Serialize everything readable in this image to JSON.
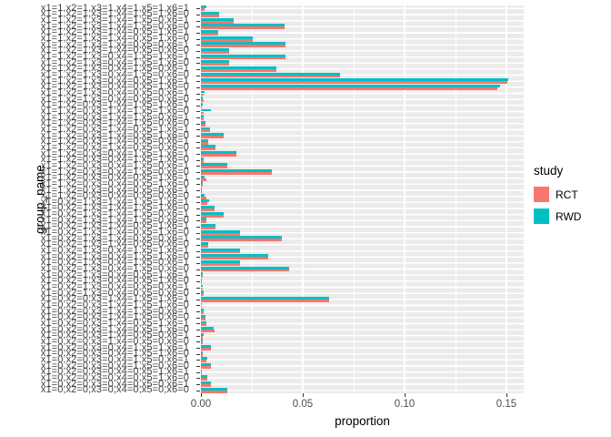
{
  "y_axis": {
    "title": "group_name",
    "labels": [
      "x1=1,x2=1,x3=1,x4=1,x5=1,x6=1",
      "x1=1,x2=1,x3=1,x4=1,x5=1,x6=0",
      "x1=1,x2=1,x3=1,x4=1,x5=0,x6=1",
      "x1=1,x2=1,x3=1,x4=1,x5=0,x6=0",
      "x1=1,x2=1,x3=1,x4=0,x5=1,x6=1",
      "x1=1,x2=1,x3=1,x4=0,x5=1,x6=0",
      "x1=1,x2=1,x3=1,x4=0,x5=0,x6=1",
      "x1=1,x2=1,x3=1,x4=0,x5=0,x6=0",
      "x1=1,x2=1,x3=0,x4=1,x5=1,x6=1",
      "x1=1,x2=1,x3=0,x4=1,x5=1,x6=0",
      "x1=1,x2=1,x3=0,x4=1,x5=0,x6=1",
      "x1=1,x2=1,x3=0,x4=1,x5=0,x6=0",
      "x1=1,x2=1,x3=0,x4=0,x5=1,x6=1",
      "x1=1,x2=1,x3=0,x4=0,x5=1,x6=0",
      "x1=1,x2=1,x3=0,x4=0,x5=0,x6=1",
      "x1=1,x2=1,x3=0,x4=0,x5=0,x6=0",
      "x1=1,x2=0,x3=1,x4=1,x5=1,x6=1",
      "x1=1,x2=0,x3=1,x4=1,x5=1,x6=0",
      "x1=1,x2=0,x3=1,x4=1,x5=0,x6=1",
      "x1=1,x2=0,x3=1,x4=1,x5=0,x6=0",
      "x1=1,x2=0,x3=1,x4=0,x5=1,x6=1",
      "x1=1,x2=0,x3=1,x4=0,x5=1,x6=0",
      "x1=1,x2=0,x3=1,x4=0,x5=0,x6=1",
      "x1=1,x2=0,x3=1,x4=0,x5=0,x6=0",
      "x1=1,x2=0,x3=0,x4=1,x5=1,x6=1",
      "x1=1,x2=0,x3=0,x4=1,x5=1,x6=0",
      "x1=1,x2=0,x3=0,x4=1,x5=0,x6=1",
      "x1=1,x2=0,x3=0,x4=1,x5=0,x6=0",
      "x1=1,x2=0,x3=0,x4=0,x5=1,x6=1",
      "x1=1,x2=0,x3=0,x4=0,x5=1,x6=0",
      "x1=1,x2=0,x3=0,x4=0,x5=0,x6=1",
      "x1=1,x2=0,x3=0,x4=0,x5=0,x6=0",
      "x1=0,x2=1,x3=1,x4=1,x5=1,x6=1",
      "x1=0,x2=1,x3=1,x4=1,x5=1,x6=0",
      "x1=0,x2=1,x3=1,x4=1,x5=0,x6=1",
      "x1=0,x2=1,x3=1,x4=1,x5=0,x6=0",
      "x1=0,x2=1,x3=1,x4=0,x5=1,x6=1",
      "x1=0,x2=1,x3=1,x4=0,x5=1,x6=0",
      "x1=0,x2=1,x3=1,x4=0,x5=0,x6=1",
      "x1=0,x2=1,x3=1,x4=0,x5=0,x6=0",
      "x1=0,x2=1,x3=0,x4=1,x5=1,x6=1",
      "x1=0,x2=1,x3=0,x4=1,x5=1,x6=0",
      "x1=0,x2=1,x3=0,x4=1,x5=0,x6=1",
      "x1=0,x2=1,x3=0,x4=1,x5=0,x6=0",
      "x1=0,x2=1,x3=0,x4=0,x5=1,x6=1",
      "x1=0,x2=1,x3=0,x4=0,x5=1,x6=0",
      "x1=0,x2=1,x3=0,x4=0,x5=0,x6=1",
      "x1=0,x2=1,x3=0,x4=0,x5=0,x6=0",
      "x1=0,x2=0,x3=1,x4=1,x5=1,x6=1",
      "x1=0,x2=0,x3=1,x4=1,x5=1,x6=0",
      "x1=0,x2=0,x3=1,x4=1,x5=0,x6=1",
      "x1=0,x2=0,x3=1,x4=1,x5=0,x6=0",
      "x1=0,x2=0,x3=1,x4=0,x5=1,x6=1",
      "x1=0,x2=0,x3=1,x4=0,x5=1,x6=0",
      "x1=0,x2=0,x3=1,x4=0,x5=0,x6=1",
      "x1=0,x2=0,x3=1,x4=0,x5=0,x6=0",
      "x1=0,x2=0,x3=0,x4=1,x5=1,x6=1",
      "x1=0,x2=0,x3=0,x4=1,x5=1,x6=0",
      "x1=0,x2=0,x3=0,x4=1,x5=0,x6=1",
      "x1=0,x2=0,x3=0,x4=1,x5=0,x6=0",
      "x1=0,x2=0,x3=0,x4=0,x5=1,x6=1",
      "x1=0,x2=0,x3=0,x4=0,x5=1,x6=0",
      "x1=0,x2=0,x3=0,x4=0,x5=0,x6=1",
      "x1=0,x2=0,x3=0,x4=0,x5=0,x6=0"
    ]
  },
  "x_axis": {
    "title": "proportion",
    "tick_labels": [
      "0.00",
      "0.05",
      "0.10",
      "0.15"
    ],
    "tick_values": [
      0,
      0.05,
      0.1,
      0.15
    ],
    "minor_tick_values": [
      0.025,
      0.075,
      0.125
    ]
  },
  "legend": {
    "title": "study",
    "entries": [
      {
        "label": "RCT",
        "color": "#F8766D"
      },
      {
        "label": "RWD",
        "color": "#00BFC4"
      }
    ]
  },
  "style": {
    "panel_background": "#EBEBEB",
    "grid_color": "#FFFFFF",
    "tick_color": "#333333",
    "axis_text_color": "#4d4d4d"
  },
  "chart_data": {
    "type": "bar",
    "orientation": "horizontal",
    "grouping": "dodge",
    "title": "",
    "xlabel": "proportion",
    "ylabel": "group_name",
    "xlim": [
      0,
      0.1585
    ],
    "legend_position": "right",
    "grid": true,
    "categories": [
      "x1=1,x2=1,x3=1,x4=1,x5=1,x6=1",
      "x1=1,x2=1,x3=1,x4=1,x5=1,x6=0",
      "x1=1,x2=1,x3=1,x4=1,x5=0,x6=1",
      "x1=1,x2=1,x3=1,x4=1,x5=0,x6=0",
      "x1=1,x2=1,x3=1,x4=0,x5=1,x6=1",
      "x1=1,x2=1,x3=1,x4=0,x5=1,x6=0",
      "x1=1,x2=1,x3=1,x4=0,x5=0,x6=1",
      "x1=1,x2=1,x3=1,x4=0,x5=0,x6=0",
      "x1=1,x2=1,x3=0,x4=1,x5=1,x6=1",
      "x1=1,x2=1,x3=0,x4=1,x5=1,x6=0",
      "x1=1,x2=1,x3=0,x4=1,x5=0,x6=1",
      "x1=1,x2=1,x3=0,x4=1,x5=0,x6=0",
      "x1=1,x2=1,x3=0,x4=0,x5=1,x6=1",
      "x1=1,x2=1,x3=0,x4=0,x5=1,x6=0",
      "x1=1,x2=1,x3=0,x4=0,x5=0,x6=1",
      "x1=1,x2=1,x3=0,x4=0,x5=0,x6=0",
      "x1=1,x2=0,x3=1,x4=1,x5=1,x6=1",
      "x1=1,x2=0,x3=1,x4=1,x5=1,x6=0",
      "x1=1,x2=0,x3=1,x4=1,x5=0,x6=1",
      "x1=1,x2=0,x3=1,x4=1,x5=0,x6=0",
      "x1=1,x2=0,x3=1,x4=0,x5=1,x6=1",
      "x1=1,x2=0,x3=1,x4=0,x5=1,x6=0",
      "x1=1,x2=0,x3=1,x4=0,x5=0,x6=1",
      "x1=1,x2=0,x3=1,x4=0,x5=0,x6=0",
      "x1=1,x2=0,x3=0,x4=1,x5=1,x6=1",
      "x1=1,x2=0,x3=0,x4=1,x5=1,x6=0",
      "x1=1,x2=0,x3=0,x4=1,x5=0,x6=1",
      "x1=1,x2=0,x3=0,x4=1,x5=0,x6=0",
      "x1=1,x2=0,x3=0,x4=0,x5=1,x6=1",
      "x1=1,x2=0,x3=0,x4=0,x5=1,x6=0",
      "x1=1,x2=0,x3=0,x4=0,x5=0,x6=1",
      "x1=1,x2=0,x3=0,x4=0,x5=0,x6=0",
      "x1=0,x2=1,x3=1,x4=1,x5=1,x6=1",
      "x1=0,x2=1,x3=1,x4=1,x5=1,x6=0",
      "x1=0,x2=1,x3=1,x4=1,x5=0,x6=1",
      "x1=0,x2=1,x3=1,x4=1,x5=0,x6=0",
      "x1=0,x2=1,x3=1,x4=0,x5=1,x6=1",
      "x1=0,x2=1,x3=1,x4=0,x5=1,x6=0",
      "x1=0,x2=1,x3=1,x4=0,x5=0,x6=1",
      "x1=0,x2=1,x3=1,x4=0,x5=0,x6=0",
      "x1=0,x2=1,x3=0,x4=1,x5=1,x6=1",
      "x1=0,x2=1,x3=0,x4=1,x5=1,x6=0",
      "x1=0,x2=1,x3=0,x4=1,x5=0,x6=1",
      "x1=0,x2=1,x3=0,x4=1,x5=0,x6=0",
      "x1=0,x2=1,x3=0,x4=0,x5=1,x6=1",
      "x1=0,x2=1,x3=0,x4=0,x5=1,x6=0",
      "x1=0,x2=1,x3=0,x4=0,x5=0,x6=1",
      "x1=0,x2=1,x3=0,x4=0,x5=0,x6=0",
      "x1=0,x2=0,x3=1,x4=1,x5=1,x6=1",
      "x1=0,x2=0,x3=1,x4=1,x5=1,x6=0",
      "x1=0,x2=0,x3=1,x4=1,x5=0,x6=1",
      "x1=0,x2=0,x3=1,x4=1,x5=0,x6=0",
      "x1=0,x2=0,x3=1,x4=0,x5=1,x6=1",
      "x1=0,x2=0,x3=1,x4=0,x5=1,x6=0",
      "x1=0,x2=0,x3=1,x4=0,x5=0,x6=1",
      "x1=0,x2=0,x3=1,x4=0,x5=0,x6=0",
      "x1=0,x2=0,x3=0,x4=1,x5=1,x6=1",
      "x1=0,x2=0,x3=0,x4=1,x5=1,x6=0",
      "x1=0,x2=0,x3=0,x4=1,x5=0,x6=1",
      "x1=0,x2=0,x3=0,x4=1,x5=0,x6=0",
      "x1=0,x2=0,x3=0,x4=0,x5=1,x6=1",
      "x1=0,x2=0,x3=0,x4=0,x5=1,x6=0",
      "x1=0,x2=0,x3=0,x4=0,x5=0,x6=1",
      "x1=0,x2=0,x3=0,x4=0,x5=0,x6=0"
    ],
    "series": [
      {
        "name": "RCT",
        "color": "#F8766D",
        "values": [
          0.0018,
          0.0088,
          0.0159,
          0.0409,
          0.0083,
          0.0253,
          0.0415,
          0.0138,
          0.0414,
          0.014,
          0.0369,
          0.0683,
          0.1505,
          0.1455,
          0.0013,
          0.0013,
          0.0004,
          0.0015,
          0.0013,
          0.0021,
          0.0043,
          0.0112,
          0.0034,
          0.0071,
          0.0176,
          0.0013,
          0.0128,
          0.0348,
          0.0025,
          0.001,
          0.0006,
          0.0025,
          0.003,
          0.0067,
          0.0112,
          0.0025,
          0.0071,
          0.0192,
          0.0397,
          0.0036,
          0.0192,
          0.033,
          0.0192,
          0.0434,
          0.001,
          0.0006,
          0.001,
          0.0015,
          0.0628,
          0.0004,
          0.0015,
          0.0021,
          0.0027,
          0.0067,
          0.0007,
          0.0008,
          0.0049,
          0.0008,
          0.0028,
          0.0049,
          0.0004,
          0.0031,
          0.0049,
          0.0131
        ]
      },
      {
        "name": "RWD",
        "color": "#00BFC4",
        "values": [
          0.0028,
          0.0088,
          0.0159,
          0.0409,
          0.0083,
          0.0256,
          0.0415,
          0.0138,
          0.0414,
          0.014,
          0.0369,
          0.0683,
          0.151,
          0.147,
          0.0018,
          0.0007,
          0.0007,
          0.0049,
          0.0013,
          0.0021,
          0.0043,
          0.0112,
          0.0034,
          0.0071,
          0.0176,
          0.0013,
          0.0128,
          0.0348,
          0.0018,
          0.001,
          0.0006,
          0.0018,
          0.0039,
          0.0067,
          0.0112,
          0.0025,
          0.0071,
          0.0192,
          0.0397,
          0.0036,
          0.0192,
          0.033,
          0.0192,
          0.0434,
          0.001,
          0.0006,
          0.001,
          0.0015,
          0.0628,
          0.0006,
          0.0015,
          0.0021,
          0.0027,
          0.0063,
          0.0012,
          0.001,
          0.0049,
          0.001,
          0.0033,
          0.0049,
          0.0004,
          0.0031,
          0.0049,
          0.0131
        ]
      }
    ]
  }
}
